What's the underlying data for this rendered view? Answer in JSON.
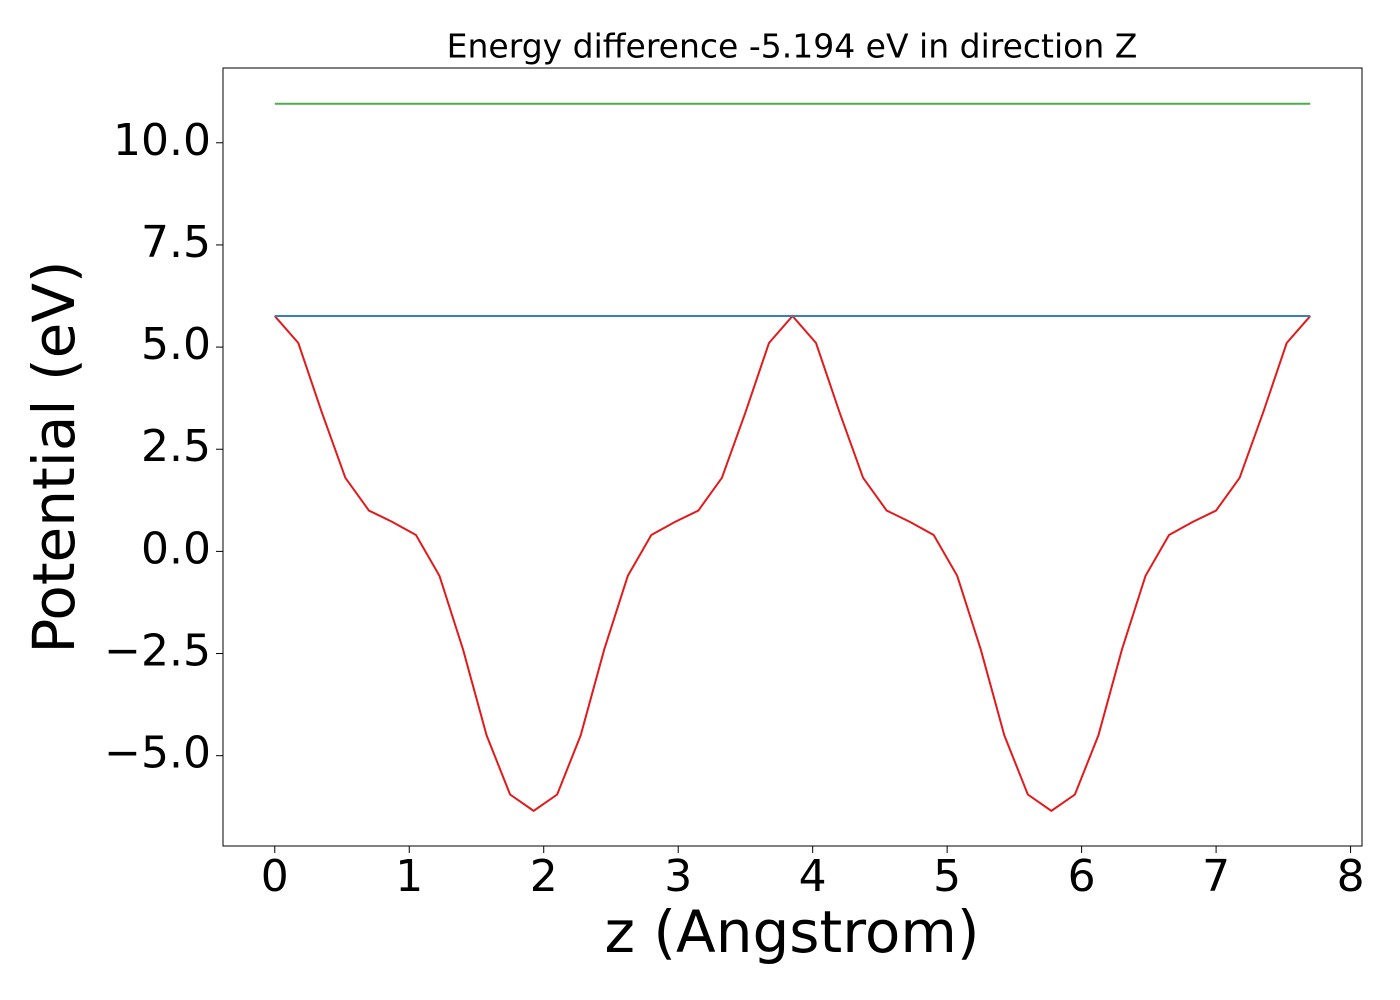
{
  "chart_data": {
    "type": "line",
    "title": "Energy difference -5.194 eV in direction Z",
    "x_label": "z (Angstrom)",
    "y_label": "Potential (eV)",
    "xlim": [
      -0.385,
      8.085
    ],
    "ylim": [
      -7.21,
      11.83
    ],
    "xticks": [
      0,
      1,
      2,
      3,
      4,
      5,
      6,
      7,
      8
    ],
    "yticks": [
      {
        "value": -5,
        "label": "−5.0"
      },
      {
        "value": -2.5,
        "label": "−2.5"
      },
      {
        "value": 0,
        "label": "0.0"
      },
      2.5,
      {
        "value": 5,
        "label": "5.0"
      },
      7.5,
      {
        "value": 10,
        "label": "10.0"
      }
    ],
    "series": [
      {
        "color": "#e31a1c",
        "x": [
          0,
          0.175,
          0.35,
          0.525,
          0.7,
          0.875,
          1.05,
          1.225,
          1.4,
          1.575,
          1.75,
          1.925,
          2.1,
          2.275,
          2.45,
          2.625,
          2.8,
          2.975,
          3.15,
          3.325,
          3.5,
          3.675,
          3.85,
          4.025,
          4.2,
          4.375,
          4.55,
          4.725,
          4.9,
          5.075,
          5.25,
          5.425,
          5.6,
          5.775,
          5.95,
          6.125,
          6.3,
          6.475,
          6.65,
          6.825,
          7.0,
          7.175,
          7.35,
          7.525,
          7.7
        ],
        "values": [
          5.76,
          5.1,
          3.4,
          1.8,
          1.0,
          0.72,
          0.4,
          -0.6,
          -2.4,
          -4.5,
          -5.95,
          -6.35,
          -5.95,
          -4.5,
          -2.4,
          -0.6,
          0.4,
          0.72,
          1.0,
          1.8,
          3.4,
          5.1,
          5.76,
          5.1,
          3.4,
          1.8,
          1.0,
          0.72,
          0.4,
          -0.6,
          -2.4,
          -4.5,
          -5.95,
          -6.35,
          -5.95,
          -4.5,
          -2.4,
          -0.6,
          0.4,
          0.72,
          1.0,
          1.8,
          3.4,
          5.1,
          5.76
        ]
      },
      {
        "color": "#3a80b0",
        "x": [
          0,
          7.7
        ],
        "values": [
          5.761,
          5.761
        ]
      },
      {
        "color": "#4daf4a",
        "x": [
          0,
          7.7
        ],
        "values": [
          10.955,
          10.955
        ]
      }
    ]
  }
}
